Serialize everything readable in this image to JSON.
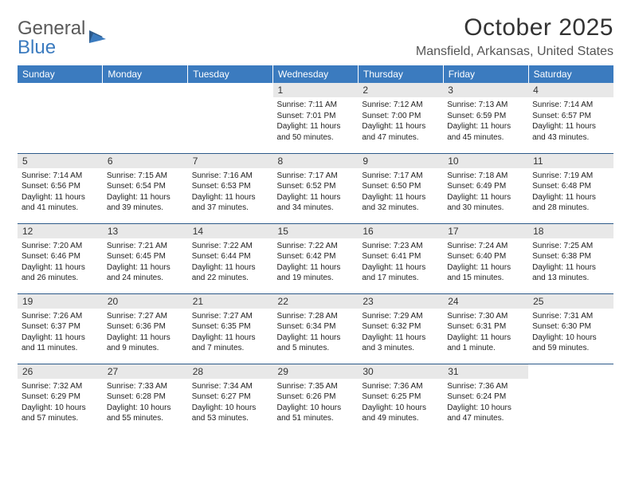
{
  "logo": {
    "text_gray": "General",
    "text_blue": "Blue"
  },
  "title": "October 2025",
  "location": "Mansfield, Arkansas, United States",
  "header_bg": "#3b7bbf",
  "columns": [
    "Sunday",
    "Monday",
    "Tuesday",
    "Wednesday",
    "Thursday",
    "Friday",
    "Saturday"
  ],
  "weeks": [
    [
      {
        "day": "",
        "empty": true
      },
      {
        "day": "",
        "empty": true
      },
      {
        "day": "",
        "empty": true
      },
      {
        "day": "1",
        "sunrise": "Sunrise: 7:11 AM",
        "sunset": "Sunset: 7:01 PM",
        "daylight": "Daylight: 11 hours and 50 minutes."
      },
      {
        "day": "2",
        "sunrise": "Sunrise: 7:12 AM",
        "sunset": "Sunset: 7:00 PM",
        "daylight": "Daylight: 11 hours and 47 minutes."
      },
      {
        "day": "3",
        "sunrise": "Sunrise: 7:13 AM",
        "sunset": "Sunset: 6:59 PM",
        "daylight": "Daylight: 11 hours and 45 minutes."
      },
      {
        "day": "4",
        "sunrise": "Sunrise: 7:14 AM",
        "sunset": "Sunset: 6:57 PM",
        "daylight": "Daylight: 11 hours and 43 minutes."
      }
    ],
    [
      {
        "day": "5",
        "sunrise": "Sunrise: 7:14 AM",
        "sunset": "Sunset: 6:56 PM",
        "daylight": "Daylight: 11 hours and 41 minutes."
      },
      {
        "day": "6",
        "sunrise": "Sunrise: 7:15 AM",
        "sunset": "Sunset: 6:54 PM",
        "daylight": "Daylight: 11 hours and 39 minutes."
      },
      {
        "day": "7",
        "sunrise": "Sunrise: 7:16 AM",
        "sunset": "Sunset: 6:53 PM",
        "daylight": "Daylight: 11 hours and 37 minutes."
      },
      {
        "day": "8",
        "sunrise": "Sunrise: 7:17 AM",
        "sunset": "Sunset: 6:52 PM",
        "daylight": "Daylight: 11 hours and 34 minutes."
      },
      {
        "day": "9",
        "sunrise": "Sunrise: 7:17 AM",
        "sunset": "Sunset: 6:50 PM",
        "daylight": "Daylight: 11 hours and 32 minutes."
      },
      {
        "day": "10",
        "sunrise": "Sunrise: 7:18 AM",
        "sunset": "Sunset: 6:49 PM",
        "daylight": "Daylight: 11 hours and 30 minutes."
      },
      {
        "day": "11",
        "sunrise": "Sunrise: 7:19 AM",
        "sunset": "Sunset: 6:48 PM",
        "daylight": "Daylight: 11 hours and 28 minutes."
      }
    ],
    [
      {
        "day": "12",
        "sunrise": "Sunrise: 7:20 AM",
        "sunset": "Sunset: 6:46 PM",
        "daylight": "Daylight: 11 hours and 26 minutes."
      },
      {
        "day": "13",
        "sunrise": "Sunrise: 7:21 AM",
        "sunset": "Sunset: 6:45 PM",
        "daylight": "Daylight: 11 hours and 24 minutes."
      },
      {
        "day": "14",
        "sunrise": "Sunrise: 7:22 AM",
        "sunset": "Sunset: 6:44 PM",
        "daylight": "Daylight: 11 hours and 22 minutes."
      },
      {
        "day": "15",
        "sunrise": "Sunrise: 7:22 AM",
        "sunset": "Sunset: 6:42 PM",
        "daylight": "Daylight: 11 hours and 19 minutes."
      },
      {
        "day": "16",
        "sunrise": "Sunrise: 7:23 AM",
        "sunset": "Sunset: 6:41 PM",
        "daylight": "Daylight: 11 hours and 17 minutes."
      },
      {
        "day": "17",
        "sunrise": "Sunrise: 7:24 AM",
        "sunset": "Sunset: 6:40 PM",
        "daylight": "Daylight: 11 hours and 15 minutes."
      },
      {
        "day": "18",
        "sunrise": "Sunrise: 7:25 AM",
        "sunset": "Sunset: 6:38 PM",
        "daylight": "Daylight: 11 hours and 13 minutes."
      }
    ],
    [
      {
        "day": "19",
        "sunrise": "Sunrise: 7:26 AM",
        "sunset": "Sunset: 6:37 PM",
        "daylight": "Daylight: 11 hours and 11 minutes."
      },
      {
        "day": "20",
        "sunrise": "Sunrise: 7:27 AM",
        "sunset": "Sunset: 6:36 PM",
        "daylight": "Daylight: 11 hours and 9 minutes."
      },
      {
        "day": "21",
        "sunrise": "Sunrise: 7:27 AM",
        "sunset": "Sunset: 6:35 PM",
        "daylight": "Daylight: 11 hours and 7 minutes."
      },
      {
        "day": "22",
        "sunrise": "Sunrise: 7:28 AM",
        "sunset": "Sunset: 6:34 PM",
        "daylight": "Daylight: 11 hours and 5 minutes."
      },
      {
        "day": "23",
        "sunrise": "Sunrise: 7:29 AM",
        "sunset": "Sunset: 6:32 PM",
        "daylight": "Daylight: 11 hours and 3 minutes."
      },
      {
        "day": "24",
        "sunrise": "Sunrise: 7:30 AM",
        "sunset": "Sunset: 6:31 PM",
        "daylight": "Daylight: 11 hours and 1 minute."
      },
      {
        "day": "25",
        "sunrise": "Sunrise: 7:31 AM",
        "sunset": "Sunset: 6:30 PM",
        "daylight": "Daylight: 10 hours and 59 minutes."
      }
    ],
    [
      {
        "day": "26",
        "sunrise": "Sunrise: 7:32 AM",
        "sunset": "Sunset: 6:29 PM",
        "daylight": "Daylight: 10 hours and 57 minutes."
      },
      {
        "day": "27",
        "sunrise": "Sunrise: 7:33 AM",
        "sunset": "Sunset: 6:28 PM",
        "daylight": "Daylight: 10 hours and 55 minutes."
      },
      {
        "day": "28",
        "sunrise": "Sunrise: 7:34 AM",
        "sunset": "Sunset: 6:27 PM",
        "daylight": "Daylight: 10 hours and 53 minutes."
      },
      {
        "day": "29",
        "sunrise": "Sunrise: 7:35 AM",
        "sunset": "Sunset: 6:26 PM",
        "daylight": "Daylight: 10 hours and 51 minutes."
      },
      {
        "day": "30",
        "sunrise": "Sunrise: 7:36 AM",
        "sunset": "Sunset: 6:25 PM",
        "daylight": "Daylight: 10 hours and 49 minutes."
      },
      {
        "day": "31",
        "sunrise": "Sunrise: 7:36 AM",
        "sunset": "Sunset: 6:24 PM",
        "daylight": "Daylight: 10 hours and 47 minutes."
      },
      {
        "day": "",
        "empty": true
      }
    ]
  ]
}
